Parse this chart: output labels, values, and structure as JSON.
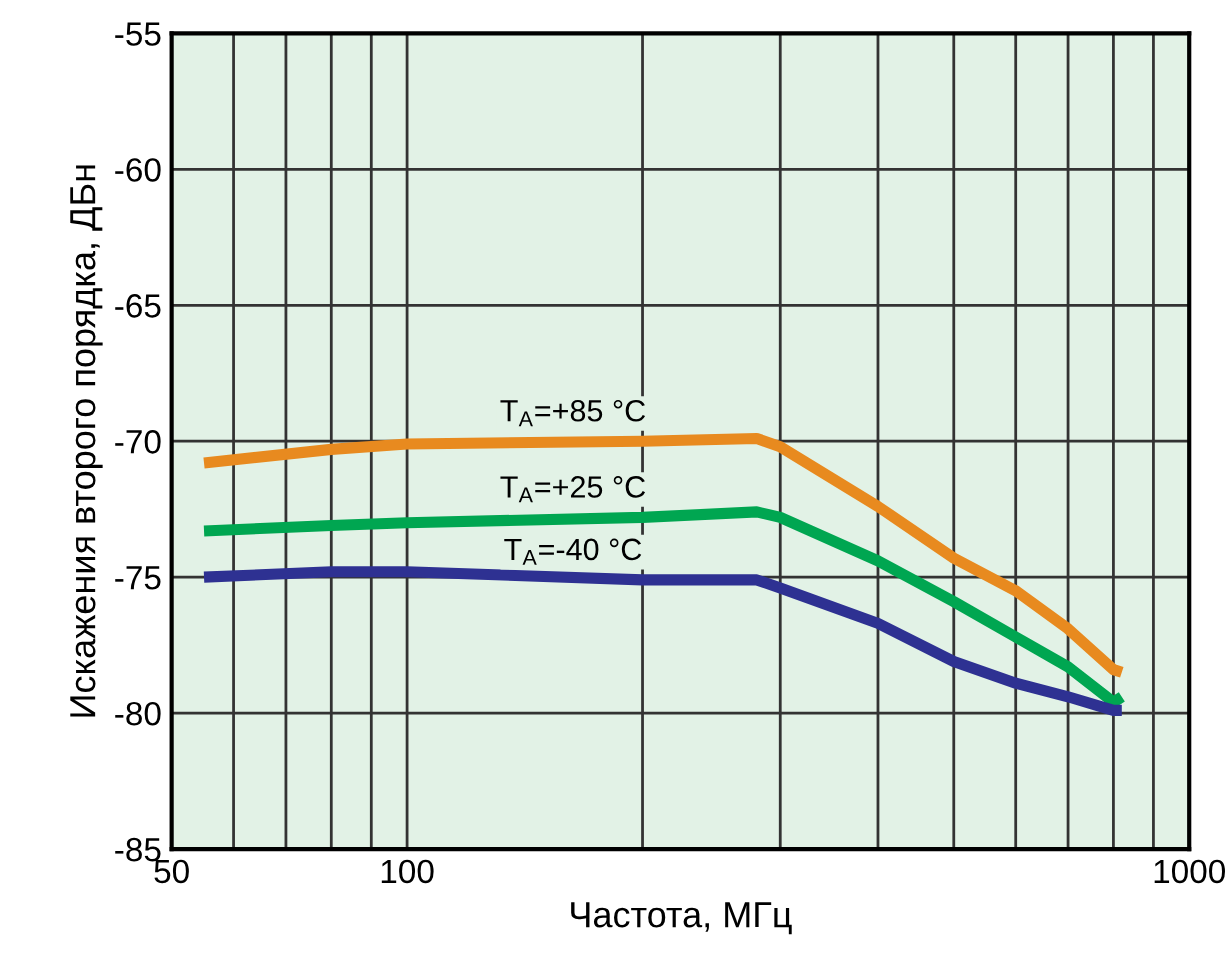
{
  "chart_data": {
    "type": "line",
    "xlabel": "Частота, МГц",
    "ylabel": "Искажения второго порядка, ДБн",
    "log": "x",
    "xlim": [
      50,
      1000
    ],
    "ylim": [
      -85,
      -55
    ],
    "xticks": [
      50,
      {
        "value": 60,
        "label": null
      },
      {
        "value": 70,
        "label": null
      },
      {
        "value": 80,
        "label": null
      },
      {
        "value": 90,
        "label": null
      },
      100,
      {
        "value": 200,
        "label": null
      },
      {
        "value": 300,
        "label": null
      },
      {
        "value": 400,
        "label": null
      },
      {
        "value": 500,
        "label": null
      },
      {
        "value": 600,
        "label": null
      },
      {
        "value": 700,
        "label": null
      },
      {
        "value": 800,
        "label": null
      },
      {
        "value": 900,
        "label": null
      },
      1000
    ],
    "yticks": [
      -85,
      -80,
      -75,
      -70,
      -65,
      -60,
      -55
    ],
    "grid": true,
    "line_style": "solid",
    "marker": "none",
    "x": [
      55,
      80,
      100,
      200,
      280,
      300,
      400,
      500,
      600,
      700,
      800,
      820
    ],
    "series": [
      {
        "name": "T$_{A}$=+85 °C",
        "color": "#e88a1f",
        "values": [
          -70.8,
          -70.3,
          -70.1,
          -70.0,
          -69.9,
          -70.2,
          -72.4,
          -74.3,
          -75.5,
          -76.9,
          -78.4,
          -78.5
        ]
      },
      {
        "name": "T$_{A}$=+25 °C",
        "color": "#00a651",
        "values": [
          -73.3,
          -73.1,
          -73.0,
          -72.8,
          -72.6,
          -72.8,
          -74.4,
          -75.9,
          -77.2,
          -78.3,
          -79.6,
          -79.4
        ]
      },
      {
        "name": "T$_{A}$=-40 °C",
        "color": "#2e3192",
        "values": [
          -75.0,
          -74.8,
          -74.8,
          -75.1,
          -75.1,
          -75.4,
          -76.7,
          -78.1,
          -78.9,
          -79.4,
          -79.9,
          -79.9
        ]
      }
    ]
  }
}
